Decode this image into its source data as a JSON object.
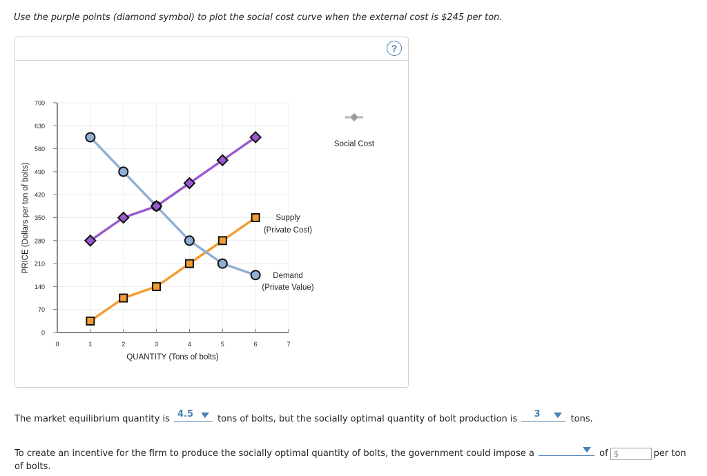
{
  "prompt": "Use the purple points (diamond symbol) to plot the social cost curve when the external cost is $245 per ton.",
  "help_icon": "?",
  "chart_data": {
    "type": "line",
    "xlabel": "QUANTITY (Tons of bolts)",
    "ylabel": "PRICE (Dollars per ton of bolts)",
    "xlim": [
      0,
      7
    ],
    "ylim": [
      0,
      700
    ],
    "xticks": [
      "0",
      "1",
      "2",
      "3",
      "4",
      "5",
      "6",
      "7"
    ],
    "yticks": [
      "0",
      "70",
      "140",
      "210",
      "280",
      "350",
      "420",
      "490",
      "560",
      "630",
      "700"
    ],
    "grid": true,
    "series": [
      {
        "name": "Demand (Private Value)",
        "label_line1": "Demand",
        "label_line2": "(Private Value)",
        "marker": "circle",
        "color": "#8fb0d3",
        "x": [
          1,
          2,
          3,
          4,
          5,
          6
        ],
        "y": [
          595,
          490,
          385,
          280,
          210,
          175
        ]
      },
      {
        "name": "Supply (Private Cost)",
        "label_line1": "Supply",
        "label_line2": "(Private Cost)",
        "marker": "square",
        "color": "#f39c33",
        "x": [
          1,
          2,
          3,
          4,
          5,
          6
        ],
        "y": [
          35,
          105,
          140,
          210,
          280,
          350
        ]
      },
      {
        "name": "Social Cost",
        "marker": "diamond",
        "color": "#9b59d0",
        "x": [
          1,
          2,
          3,
          4,
          5,
          6
        ],
        "y": [
          280,
          350,
          385,
          455,
          525,
          595
        ]
      }
    ],
    "legend": {
      "tool_label": "Social Cost",
      "placement": "top-right"
    }
  },
  "questions": {
    "q1_before": "The market equilibrium quantity is",
    "q1_answer": "4.5",
    "q1_middle": "tons of bolts, but the socially optimal quantity of bolt production is",
    "q2_answer": "3",
    "q2_after": "tons.",
    "q3_before": "To create an incentive for the firm to produce the socially optimal quantity of bolts, the government could impose a",
    "q3_answer": "",
    "q3_of": "of",
    "q3_dollar": "$",
    "q3_after": "per ton",
    "q3_line2": "of bolts."
  }
}
